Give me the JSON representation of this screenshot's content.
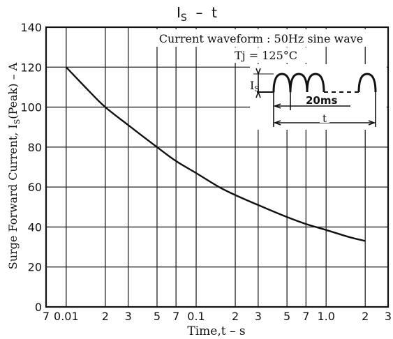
{
  "chart_data": {
    "type": "line",
    "title_main": "I",
    "title_sub": "S",
    "title_rest": "  –  t",
    "xlabel": "Time,t – s",
    "ylabel_pre": "Surge Forward Current, I",
    "ylabel_sub": "S",
    "ylabel_post": "(Peak) – A",
    "x_scale": "log",
    "xlim": [
      0.007,
      3
    ],
    "ylim": [
      0,
      140
    ],
    "grid": true,
    "y_ticks": [
      0,
      20,
      40,
      60,
      80,
      100,
      120,
      140
    ],
    "y_tick_labels": [
      "0",
      "20",
      "40",
      "60",
      "80",
      "100",
      "120",
      "140"
    ],
    "x_ticks": [
      0.007,
      0.01,
      0.02,
      0.03,
      0.05,
      0.07,
      0.1,
      0.2,
      0.3,
      0.5,
      0.7,
      1.0,
      2,
      3
    ],
    "x_tick_labels": [
      "7",
      "0.01",
      "2",
      "3",
      "5",
      "7",
      "0.1",
      "2",
      "3",
      "5",
      "7",
      "1.0",
      "2",
      "3"
    ],
    "series": [
      {
        "x": [
          0.01,
          0.015,
          0.02,
          0.03,
          0.05,
          0.07,
          0.1,
          0.15,
          0.2,
          0.3,
          0.5,
          0.7,
          1.0,
          1.5,
          2.0
        ],
        "y": [
          120,
          108,
          100,
          91,
          80,
          73,
          67,
          60,
          56,
          51,
          45,
          41.5,
          38.5,
          35,
          33
        ]
      }
    ],
    "annotations": {
      "waveform": "Current waveform : 50Hz sine wave",
      "tj": "Tj = 125°C",
      "is_main": "I",
      "is_sub": "S",
      "period": "20ms",
      "t_label": "t"
    }
  }
}
